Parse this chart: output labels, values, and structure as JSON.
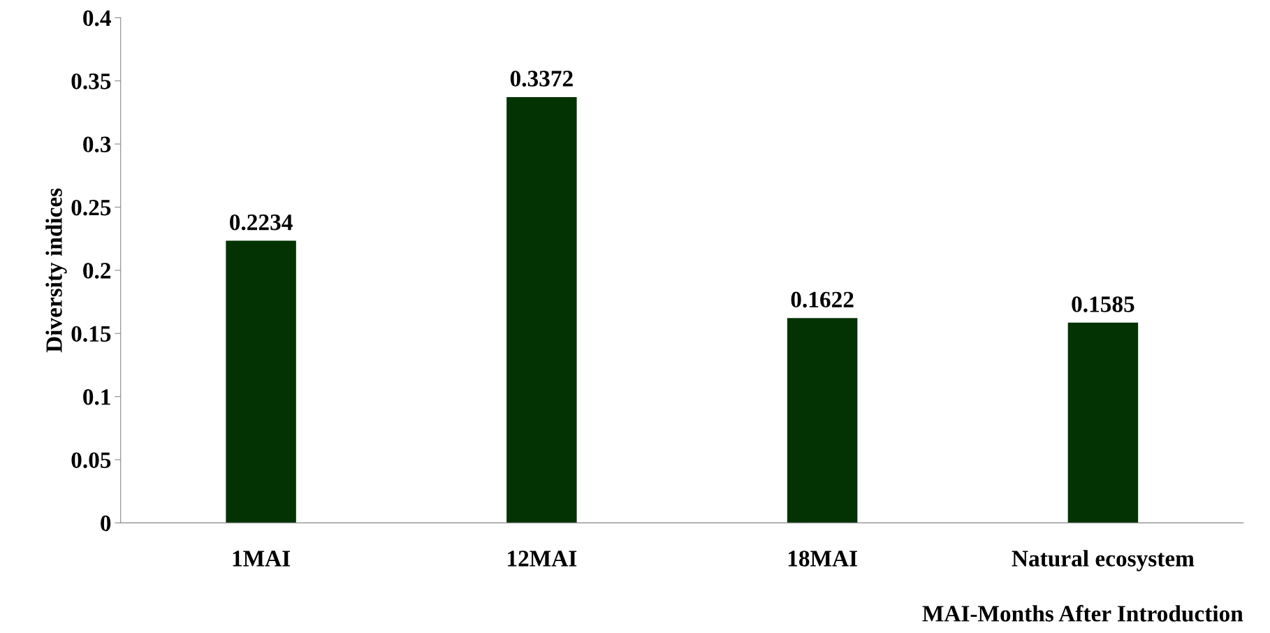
{
  "chart_data": {
    "type": "bar",
    "ylabel": "Diversity indices",
    "xlabel": "MAI-Months After Introduction",
    "categories": [
      "1MAI",
      "12MAI",
      "18MAI",
      "Natural ecosystem"
    ],
    "values": [
      0.2234,
      0.3372,
      0.1622,
      0.1585
    ],
    "color": "#033303",
    "ylim": [
      0,
      0.4
    ],
    "yticks": [
      0,
      0.05,
      0.1,
      0.15,
      0.2,
      0.25,
      0.3,
      0.35,
      0.4
    ],
    "data_labels": true,
    "grid": false
  }
}
